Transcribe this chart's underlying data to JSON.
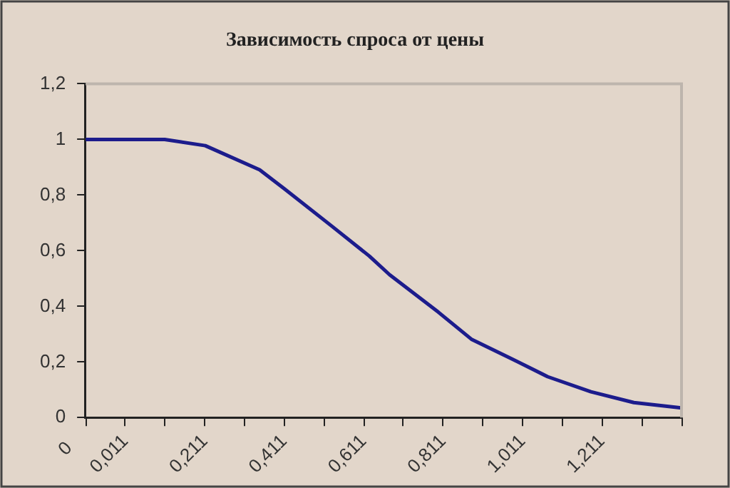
{
  "chart_data": {
    "type": "line",
    "title": "Зависимость спроса от цены",
    "x": [
      -0.089,
      0.012,
      0.11,
      0.212,
      0.349,
      0.411,
      0.531,
      0.625,
      0.676,
      0.799,
      0.882,
      0.98,
      1.074,
      1.183,
      1.291,
      1.411
    ],
    "series": [
      {
        "color": "#1c1c8c",
        "values": [
          1.0,
          1.0,
          1.0,
          0.978,
          0.891,
          0.823,
          0.688,
          0.581,
          0.514,
          0.379,
          0.282,
          0.214,
          0.147,
          0.093,
          0.054,
          0.035
        ]
      }
    ],
    "xlim": [
      -0.089,
      1.411
    ],
    "xticks": [
      {
        "value": -0.089,
        "label": null
      },
      {
        "value": 0.011,
        "label": "0,011"
      },
      {
        "value": 0.111,
        "label": null
      },
      {
        "value": 0.211,
        "label": "0,211"
      },
      {
        "value": 0.311,
        "label": null
      },
      {
        "value": 0.411,
        "label": "0,411"
      },
      {
        "value": 0.511,
        "label": null
      },
      {
        "value": 0.611,
        "label": "0,611"
      },
      {
        "value": 0.711,
        "label": null
      },
      {
        "value": 0.811,
        "label": "0,811"
      },
      {
        "value": 0.911,
        "label": null
      },
      {
        "value": 1.011,
        "label": "1,011"
      },
      {
        "value": 1.111,
        "label": null
      },
      {
        "value": 1.211,
        "label": "1,211"
      },
      {
        "value": 1.311,
        "label": null
      },
      {
        "value": 1.411,
        "label": null
      }
    ],
    "ylim": [
      0,
      1.2
    ],
    "yticks": [
      0,
      {
        "value": 0.2,
        "label": "0,2"
      },
      {
        "value": 0.4,
        "label": "0,4"
      },
      {
        "value": 0.6,
        "label": "0,6"
      },
      {
        "value": 0.8,
        "label": "0,8"
      },
      1,
      {
        "value": 1.2,
        "label": "1,2"
      }
    ],
    "annotations": [
      "0"
    ],
    "grid": false,
    "legend": false,
    "marker": "none",
    "line_style": "solid"
  }
}
